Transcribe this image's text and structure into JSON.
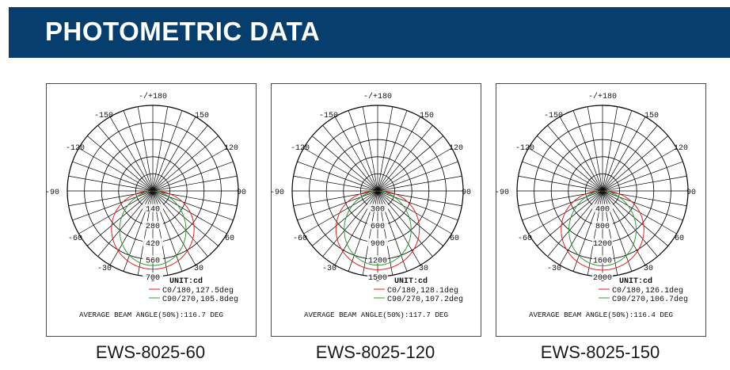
{
  "header": {
    "title": "PHOTOMETRIC DATA"
  },
  "colors": {
    "header_bg": "#063f6e",
    "c0_curve": "#e32020",
    "c90_curve": "#2a9c2a"
  },
  "angle_labels": {
    "top": "-/+180",
    "m150": "-150",
    "p150": "150",
    "m120": "-120",
    "p120": "120",
    "m90": "-90",
    "p90": "90",
    "m60": "-60",
    "p60": "60",
    "m30": "-30",
    "p30": "30",
    "zero": "0"
  },
  "charts": [
    {
      "model": "EWS-8025-60",
      "unit_label": "UNIT:cd",
      "legend_c0": "C0/180,127.5deg",
      "legend_c90": "C90/270,105.8deg",
      "average_beam": "AVERAGE BEAM ANGLE(50%):116.7 DEG",
      "radial_max": 700,
      "radial_ticks": [
        "0",
        "140",
        "280",
        "420",
        "560",
        "700"
      ],
      "c0_beam_half_angle": 63.75,
      "c90_beam_half_angle": 52.9,
      "c0_peak": 640,
      "c90_peak": 610
    },
    {
      "model": "EWS-8025-120",
      "unit_label": "UNIT:cd",
      "legend_c0": "C0/180,128.1deg",
      "legend_c90": "C90/270,107.2deg",
      "average_beam": "AVERAGE BEAM ANGLE(50%):117.7 DEG",
      "radial_max": 1500,
      "radial_ticks": [
        "0",
        "300",
        "600",
        "900",
        "1200",
        "1500"
      ],
      "c0_beam_half_angle": 64.05,
      "c90_beam_half_angle": 53.6,
      "c0_peak": 1380,
      "c90_peak": 1300
    },
    {
      "model": "EWS-8025-150",
      "unit_label": "UNIT:cd",
      "legend_c0": "C0/180,126.1deg",
      "legend_c90": "C90/270,106.7deg",
      "average_beam": "AVERAGE BEAM ANGLE(50%):116.4 DEG",
      "radial_max": 2000,
      "radial_ticks": [
        "0",
        "400",
        "800",
        "1200",
        "1600",
        "2000"
      ],
      "c0_beam_half_angle": 63.05,
      "c90_beam_half_angle": 53.35,
      "c0_peak": 1850,
      "c90_peak": 1750
    }
  ]
}
